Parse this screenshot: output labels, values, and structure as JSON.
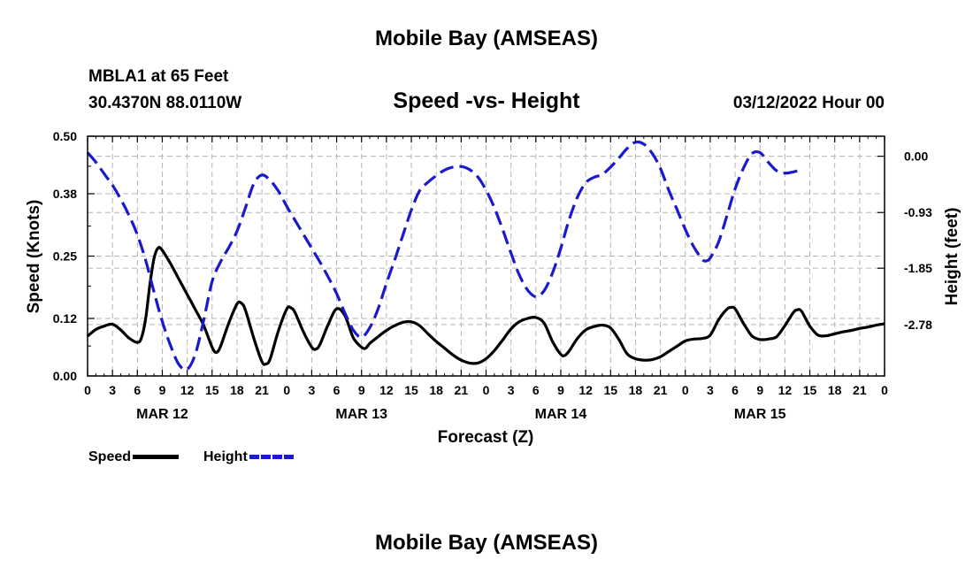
{
  "header": {
    "title": "Mobile Bay (AMSEAS)",
    "station": "MBLA1 at 65 Feet",
    "coords": "30.4370N  88.0110W",
    "datetime": "03/12/2022 Hour 00",
    "footer_title": "Mobile Bay (AMSEAS)"
  },
  "chart_data": {
    "type": "line",
    "title": "Speed -vs- Height",
    "xlabel": "Forecast (Z)",
    "ylabel_left": "Speed (Knots)",
    "ylabel_right": "Height (feet)",
    "x_range_hours": [
      0,
      96
    ],
    "x_ticks": [
      "0",
      "3",
      "6",
      "9",
      "12",
      "15",
      "18",
      "21",
      "0",
      "3",
      "6",
      "9",
      "12",
      "15",
      "18",
      "21",
      "0",
      "3",
      "6",
      "9",
      "12",
      "15",
      "18",
      "21",
      "0",
      "3",
      "6",
      "9",
      "12",
      "15",
      "18",
      "21",
      "0"
    ],
    "x_tick_step_hours": 3,
    "day_labels": [
      {
        "label": "MAR 12",
        "hour": 9
      },
      {
        "label": "MAR 13",
        "hour": 33
      },
      {
        "label": "MAR 14",
        "hour": 57
      },
      {
        "label": "MAR 15",
        "hour": 81
      }
    ],
    "y_left": {
      "range": [
        0,
        0.5
      ],
      "ticks": [
        "0.00",
        "0.12",
        "0.25",
        "0.38",
        "0.50"
      ]
    },
    "y_right": {
      "range": [
        -3.63,
        0.33
      ],
      "ticks": [
        "0.00",
        "-0.93",
        "-1.85",
        "-2.78"
      ]
    },
    "grid": true,
    "legend_position": "bottom-left",
    "series": [
      {
        "name": "Speed",
        "axis": "left",
        "color": "#000000",
        "style": "solid",
        "points": [
          [
            0,
            0.083
          ],
          [
            1,
            0.097
          ],
          [
            2,
            0.104
          ],
          [
            3,
            0.108
          ],
          [
            4,
            0.096
          ],
          [
            5,
            0.079
          ],
          [
            6,
            0.07
          ],
          [
            6.5,
            0.08
          ],
          [
            7,
            0.12
          ],
          [
            7.5,
            0.19
          ],
          [
            8,
            0.245
          ],
          [
            8.5,
            0.267
          ],
          [
            9,
            0.262
          ],
          [
            10,
            0.234
          ],
          [
            11,
            0.202
          ],
          [
            12,
            0.17
          ],
          [
            13,
            0.138
          ],
          [
            14,
            0.105
          ],
          [
            15,
            0.06
          ],
          [
            15.5,
            0.049
          ],
          [
            16,
            0.061
          ],
          [
            17,
            0.11
          ],
          [
            18,
            0.15
          ],
          [
            18.5,
            0.152
          ],
          [
            19,
            0.138
          ],
          [
            20,
            0.08
          ],
          [
            21,
            0.03
          ],
          [
            21.5,
            0.025
          ],
          [
            22,
            0.036
          ],
          [
            23,
            0.095
          ],
          [
            24,
            0.14
          ],
          [
            24.5,
            0.142
          ],
          [
            25,
            0.132
          ],
          [
            26,
            0.092
          ],
          [
            27,
            0.06
          ],
          [
            27.5,
            0.056
          ],
          [
            28,
            0.066
          ],
          [
            29,
            0.108
          ],
          [
            30,
            0.14
          ],
          [
            31,
            0.126
          ],
          [
            32,
            0.08
          ],
          [
            33,
            0.06
          ],
          [
            33.5,
            0.058
          ],
          [
            34,
            0.068
          ],
          [
            35,
            0.082
          ],
          [
            36,
            0.095
          ],
          [
            37,
            0.105
          ],
          [
            38,
            0.112
          ],
          [
            39,
            0.113
          ],
          [
            40,
            0.105
          ],
          [
            41,
            0.088
          ],
          [
            42,
            0.072
          ],
          [
            43,
            0.058
          ],
          [
            44,
            0.044
          ],
          [
            45,
            0.033
          ],
          [
            46,
            0.027
          ],
          [
            47,
            0.027
          ],
          [
            48,
            0.036
          ],
          [
            49,
            0.053
          ],
          [
            50,
            0.075
          ],
          [
            51,
            0.098
          ],
          [
            52,
            0.113
          ],
          [
            53,
            0.12
          ],
          [
            54,
            0.122
          ],
          [
            55,
            0.11
          ],
          [
            56,
            0.072
          ],
          [
            57,
            0.045
          ],
          [
            57.5,
            0.043
          ],
          [
            58,
            0.052
          ],
          [
            59,
            0.078
          ],
          [
            60,
            0.096
          ],
          [
            61,
            0.103
          ],
          [
            62,
            0.106
          ],
          [
            63,
            0.1
          ],
          [
            64,
            0.076
          ],
          [
            65,
            0.046
          ],
          [
            66,
            0.036
          ],
          [
            67,
            0.033
          ],
          [
            68,
            0.034
          ],
          [
            69,
            0.04
          ],
          [
            70,
            0.051
          ],
          [
            71,
            0.062
          ],
          [
            72,
            0.073
          ],
          [
            73,
            0.077
          ],
          [
            74,
            0.078
          ],
          [
            75,
            0.085
          ],
          [
            76,
            0.117
          ],
          [
            77,
            0.139
          ],
          [
            77.5,
            0.143
          ],
          [
            78,
            0.14
          ],
          [
            79,
            0.11
          ],
          [
            80,
            0.084
          ],
          [
            81,
            0.076
          ],
          [
            82,
            0.077
          ],
          [
            83,
            0.082
          ],
          [
            84,
            0.105
          ],
          [
            85,
            0.132
          ],
          [
            85.5,
            0.138
          ],
          [
            86,
            0.135
          ],
          [
            87,
            0.104
          ],
          [
            88,
            0.085
          ],
          [
            89,
            0.084
          ],
          [
            90,
            0.088
          ],
          [
            91,
            0.092
          ],
          [
            92,
            0.095
          ],
          [
            93,
            0.099
          ],
          [
            94,
            0.102
          ],
          [
            95,
            0.106
          ],
          [
            96,
            0.109
          ]
        ]
      },
      {
        "name": "Height",
        "axis": "right",
        "color": "#1a1acc",
        "style": "dashed",
        "points": [
          [
            0,
            0.06
          ],
          [
            1,
            -0.1
          ],
          [
            2,
            -0.29
          ],
          [
            3,
            -0.48
          ],
          [
            4,
            -0.71
          ],
          [
            5,
            -0.98
          ],
          [
            6,
            -1.3
          ],
          [
            7,
            -1.72
          ],
          [
            8,
            -2.24
          ],
          [
            9,
            -2.73
          ],
          [
            10,
            -3.13
          ],
          [
            11,
            -3.44
          ],
          [
            12,
            -3.52
          ],
          [
            13,
            -3.26
          ],
          [
            14,
            -2.7
          ],
          [
            15,
            -2.07
          ],
          [
            16,
            -1.75
          ],
          [
            17,
            -1.51
          ],
          [
            18,
            -1.24
          ],
          [
            19,
            -0.86
          ],
          [
            20,
            -0.46
          ],
          [
            21,
            -0.31
          ],
          [
            22,
            -0.4
          ],
          [
            23,
            -0.58
          ],
          [
            24,
            -0.83
          ],
          [
            25,
            -1.06
          ],
          [
            26,
            -1.29
          ],
          [
            27,
            -1.52
          ],
          [
            28,
            -1.75
          ],
          [
            29,
            -2.0
          ],
          [
            30,
            -2.27
          ],
          [
            31,
            -2.59
          ],
          [
            32,
            -2.87
          ],
          [
            33,
            -2.99
          ],
          [
            34,
            -2.83
          ],
          [
            35,
            -2.52
          ],
          [
            36,
            -2.1
          ],
          [
            37,
            -1.71
          ],
          [
            38,
            -1.3
          ],
          [
            39,
            -0.89
          ],
          [
            40,
            -0.57
          ],
          [
            41,
            -0.43
          ],
          [
            42,
            -0.32
          ],
          [
            43,
            -0.23
          ],
          [
            44,
            -0.18
          ],
          [
            45,
            -0.17
          ],
          [
            46,
            -0.22
          ],
          [
            47,
            -0.34
          ],
          [
            48,
            -0.56
          ],
          [
            49,
            -0.85
          ],
          [
            50,
            -1.21
          ],
          [
            51,
            -1.6
          ],
          [
            52,
            -1.96
          ],
          [
            53,
            -2.21
          ],
          [
            54,
            -2.32
          ],
          [
            55,
            -2.22
          ],
          [
            56,
            -1.93
          ],
          [
            57,
            -1.52
          ],
          [
            58,
            -1.05
          ],
          [
            59,
            -0.68
          ],
          [
            60,
            -0.44
          ],
          [
            61,
            -0.35
          ],
          [
            62,
            -0.3
          ],
          [
            63,
            -0.18
          ],
          [
            64,
            -0.03
          ],
          [
            65,
            0.13
          ],
          [
            66,
            0.23
          ],
          [
            67,
            0.2
          ],
          [
            68,
            0.05
          ],
          [
            69,
            -0.2
          ],
          [
            70,
            -0.56
          ],
          [
            71,
            -0.88
          ],
          [
            72,
            -1.21
          ],
          [
            73,
            -1.49
          ],
          [
            74,
            -1.7
          ],
          [
            74.5,
            -1.73
          ],
          [
            75,
            -1.68
          ],
          [
            76,
            -1.42
          ],
          [
            77,
            -0.99
          ],
          [
            78,
            -0.54
          ],
          [
            79,
            -0.2
          ],
          [
            80,
            0.04
          ],
          [
            81,
            0.06
          ],
          [
            82,
            -0.1
          ],
          [
            83,
            -0.24
          ],
          [
            84,
            -0.28
          ],
          [
            85,
            -0.26
          ],
          [
            86,
            -0.22
          ]
        ]
      }
    ]
  },
  "legend": {
    "speed_label": "Speed",
    "height_label": "Height"
  }
}
